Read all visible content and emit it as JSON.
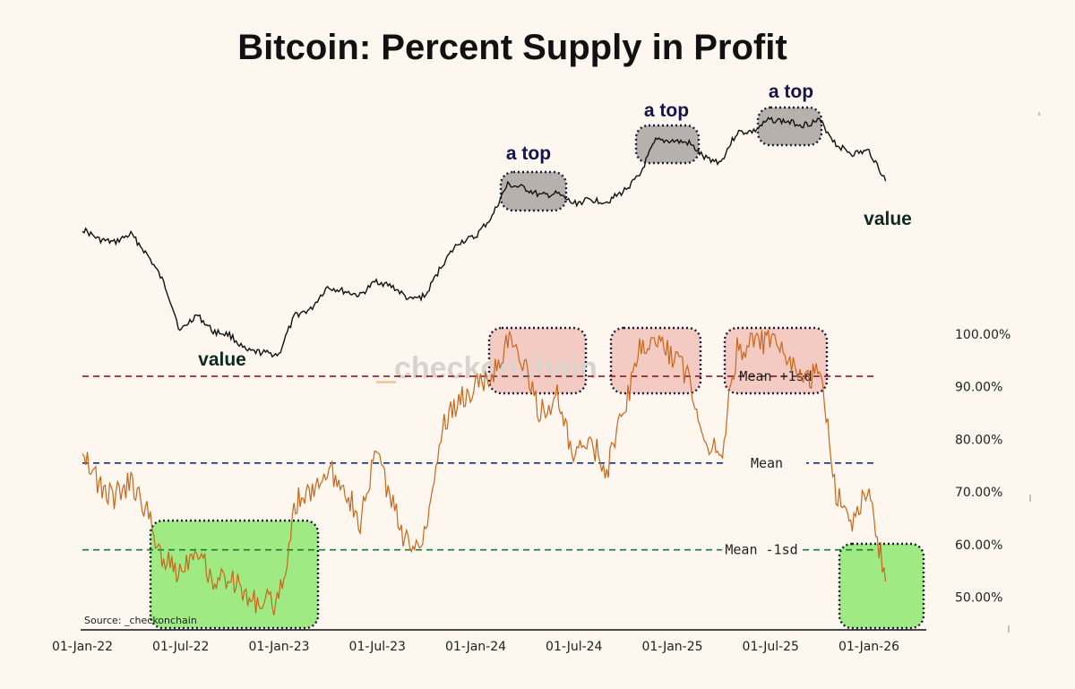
{
  "title": "Bitcoin: Percent Supply in Profit",
  "watermark": "checkonchain",
  "source": "Source: _checkonchain",
  "annotations": {
    "top1": "a top",
    "top2": "a top",
    "top3": "a top",
    "value_left": "value",
    "value_right": "value"
  },
  "reference_lines": {
    "mean_plus": {
      "label": "Mean +1sd",
      "value": 92,
      "color": "#8b1a1a"
    },
    "mean": {
      "label": "Mean",
      "value": 75.5,
      "color": "#12306e"
    },
    "mean_minus": {
      "label": "Mean -1sd",
      "value": 59,
      "color": "#1f7a3a"
    }
  },
  "colors": {
    "price_line": "#111111",
    "supply_line": "#c9661a",
    "top_zone_fill": "#f2c3bb",
    "green_zone_fill": "#8ee86f",
    "top_box_fill": "#a9a5a1",
    "dotted_border": "#1b1b3a"
  },
  "chart_data": {
    "type": "line",
    "title": "Bitcoin: Percent Supply in Profit",
    "x_axis": {
      "ticks": [
        "01-Jan-22",
        "01-Jul-22",
        "01-Jan-23",
        "01-Jul-23",
        "01-Jan-24",
        "01-Jul-24",
        "01-Jan-25",
        "01-Jul-25",
        "01-Jan-26"
      ]
    },
    "y_axis": {
      "ticks": [
        "50.00%",
        "60.00%",
        "70.00%",
        "80.00%",
        "90.00%",
        "100.00%"
      ],
      "ylim": [
        44,
        101
      ]
    },
    "series": [
      {
        "role": "price (log scale, unlabeled upper panel)",
        "x": [
          "2022-01-01",
          "2022-02-01",
          "2022-03-01",
          "2022-04-01",
          "2022-05-01",
          "2022-06-01",
          "2022-07-01",
          "2022-08-01",
          "2022-09-01",
          "2022-10-01",
          "2022-11-01",
          "2022-12-01",
          "2023-01-01",
          "2023-02-01",
          "2023-03-01",
          "2023-04-01",
          "2023-05-01",
          "2023-06-01",
          "2023-07-01",
          "2023-08-01",
          "2023-09-01",
          "2023-10-01",
          "2023-11-01",
          "2023-12-01",
          "2024-01-01",
          "2024-02-01",
          "2024-03-01",
          "2024-04-01",
          "2024-05-01",
          "2024-06-01",
          "2024-07-01",
          "2024-08-01",
          "2024-09-01",
          "2024-10-01",
          "2024-11-01",
          "2024-12-01",
          "2025-01-01",
          "2025-02-01",
          "2025-03-01",
          "2025-04-01",
          "2025-05-01",
          "2025-06-01",
          "2025-07-01",
          "2025-08-01",
          "2025-09-01",
          "2025-10-01",
          "2025-11-01",
          "2025-12-01",
          "2026-01-01",
          "2026-02-01"
        ],
        "values": [
          47000,
          43000,
          42000,
          45000,
          38000,
          30000,
          20000,
          23000,
          20000,
          19500,
          17000,
          16800,
          16500,
          23000,
          24000,
          29000,
          28000,
          27000,
          30500,
          29000,
          26000,
          27000,
          35000,
          42000,
          44000,
          52000,
          68000,
          66000,
          62000,
          63000,
          58000,
          60000,
          59000,
          64000,
          73000,
          98000,
          98000,
          96000,
          85000,
          82000,
          105000,
          106000,
          117000,
          115000,
          112000,
          116000,
          95000,
          88000,
          90000,
          70000
        ]
      },
      {
        "role": "percent supply in profit",
        "x": [
          "2022-01-01",
          "2022-02-01",
          "2022-03-01",
          "2022-04-01",
          "2022-05-01",
          "2022-06-01",
          "2022-07-01",
          "2022-08-01",
          "2022-09-01",
          "2022-10-01",
          "2022-11-01",
          "2022-12-01",
          "2023-01-01",
          "2023-02-01",
          "2023-03-01",
          "2023-04-01",
          "2023-05-01",
          "2023-06-01",
          "2023-07-01",
          "2023-08-01",
          "2023-09-01",
          "2023-10-01",
          "2023-11-01",
          "2023-12-01",
          "2024-01-01",
          "2024-02-01",
          "2024-03-01",
          "2024-04-01",
          "2024-05-01",
          "2024-06-01",
          "2024-07-01",
          "2024-08-01",
          "2024-09-01",
          "2024-10-01",
          "2024-11-01",
          "2024-12-01",
          "2025-01-01",
          "2025-02-01",
          "2025-03-01",
          "2025-04-01",
          "2025-05-01",
          "2025-06-01",
          "2025-07-01",
          "2025-08-01",
          "2025-09-01",
          "2025-10-01",
          "2025-11-01",
          "2025-12-01",
          "2026-01-01",
          "2026-02-01"
        ],
        "values": [
          79,
          71,
          69,
          72,
          66,
          57,
          55,
          60,
          53,
          54,
          50,
          49,
          49,
          68,
          70,
          74,
          72,
          64,
          78,
          67,
          59,
          63,
          83,
          87,
          90,
          92,
          99,
          94,
          85,
          88,
          76,
          80,
          74,
          85,
          97,
          99,
          96,
          92,
          80,
          77,
          97,
          98,
          99,
          95,
          91,
          93,
          70,
          65,
          70,
          53
        ]
      }
    ]
  }
}
